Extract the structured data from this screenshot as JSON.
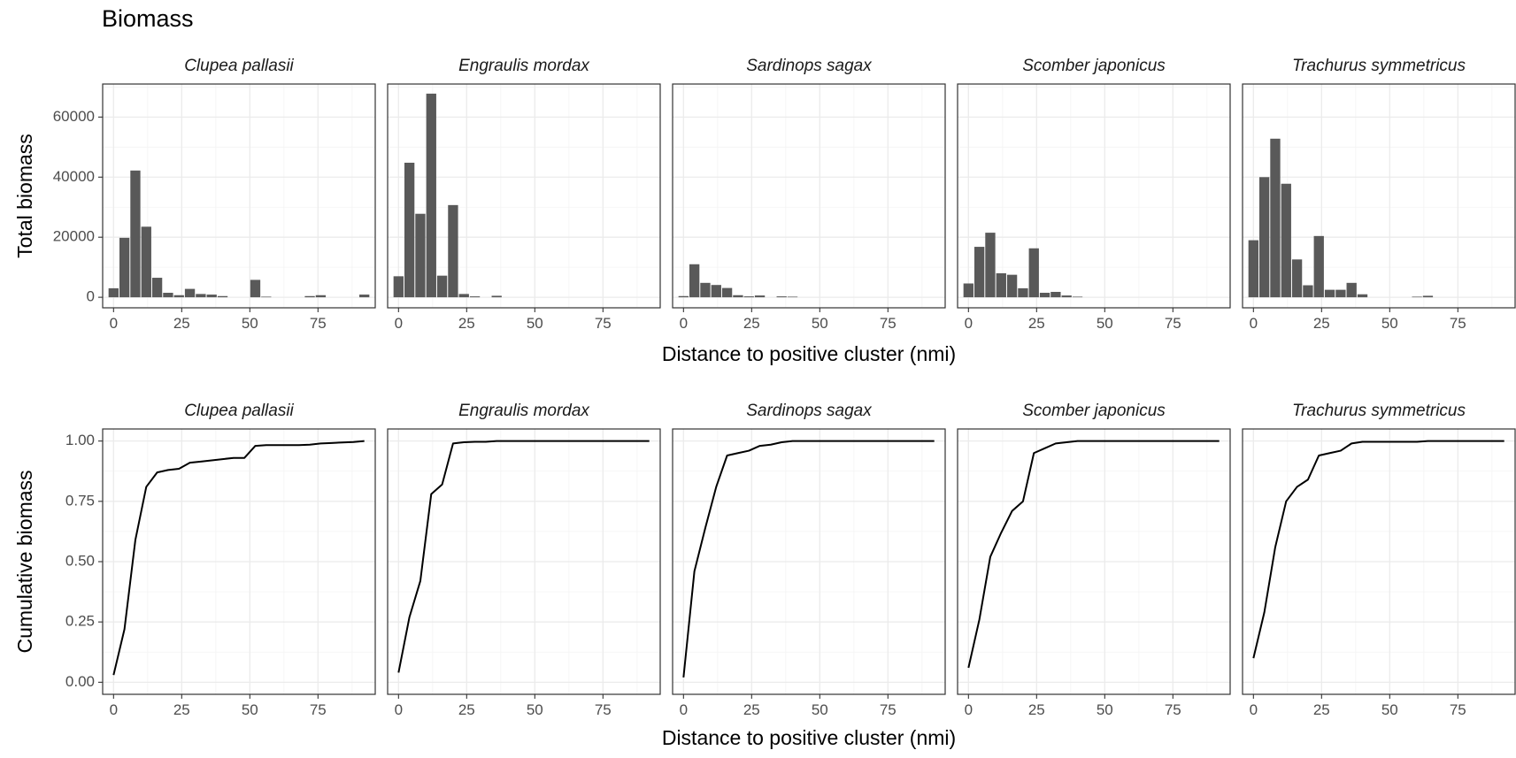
{
  "title": "Biomass",
  "chart_data": [
    {
      "type": "bar",
      "ylabel": "Total biomass",
      "xlabel": "Distance to positive cluster (nmi)",
      "xlim": [
        -4,
        96
      ],
      "ylim": [
        -3500,
        71000
      ],
      "x_ticks": [
        0,
        25,
        50,
        75
      ],
      "x_tick_labels": [
        "0",
        "25",
        "50",
        "75"
      ],
      "y_ticks": [
        0,
        20000,
        40000,
        60000
      ],
      "y_tick_labels": [
        "0",
        "20000",
        "40000",
        "60000"
      ],
      "bin_width": 4,
      "facets": [
        {
          "name": "Clupea pallasii",
          "x": [
            0,
            4,
            8,
            12,
            16,
            20,
            24,
            28,
            32,
            36,
            40,
            52,
            56,
            72,
            76,
            92
          ],
          "values": [
            3000,
            19800,
            42200,
            23500,
            6500,
            1500,
            700,
            2800,
            1100,
            900,
            400,
            5800,
            200,
            400,
            700,
            900
          ]
        },
        {
          "name": "Engraulis mordax",
          "x": [
            0,
            4,
            8,
            12,
            16,
            20,
            24,
            28,
            36
          ],
          "values": [
            7000,
            44800,
            27800,
            67800,
            7200,
            30700,
            1100,
            300,
            500
          ]
        },
        {
          "name": "Sardinops sagax",
          "x": [
            0,
            4,
            8,
            12,
            16,
            20,
            24,
            28,
            36,
            40
          ],
          "values": [
            400,
            11000,
            4800,
            4100,
            3100,
            700,
            300,
            600,
            300,
            200
          ]
        },
        {
          "name": "Scomber japonicus",
          "x": [
            0,
            4,
            8,
            12,
            16,
            20,
            24,
            28,
            32,
            36,
            40
          ],
          "values": [
            4600,
            16800,
            21500,
            8000,
            7500,
            3000,
            16300,
            1500,
            1800,
            600,
            200
          ]
        },
        {
          "name": "Trachurus symmetricus",
          "x": [
            0,
            4,
            8,
            12,
            16,
            20,
            24,
            28,
            32,
            36,
            40,
            60,
            64
          ],
          "values": [
            19000,
            40000,
            52800,
            37800,
            12600,
            4000,
            20400,
            2500,
            2500,
            4800,
            1000,
            200,
            500
          ]
        }
      ]
    },
    {
      "type": "line",
      "ylabel": "Cumulative biomass",
      "xlabel": "Distance to positive cluster (nmi)",
      "xlim": [
        -4,
        96
      ],
      "ylim": [
        -0.05,
        1.05
      ],
      "x_ticks": [
        0,
        25,
        50,
        75
      ],
      "x_tick_labels": [
        "0",
        "25",
        "50",
        "75"
      ],
      "y_ticks": [
        0,
        0.25,
        0.5,
        0.75,
        1.0
      ],
      "y_tick_labels": [
        "0.00",
        "0.25",
        "0.50",
        "0.75",
        "1.00"
      ],
      "facets": [
        {
          "name": "Clupea pallasii",
          "x": [
            0,
            4,
            8,
            12,
            16,
            20,
            24,
            28,
            32,
            36,
            40,
            44,
            48,
            52,
            56,
            60,
            64,
            68,
            72,
            76,
            80,
            84,
            88,
            92
          ],
          "y": [
            0.03,
            0.22,
            0.59,
            0.81,
            0.87,
            0.88,
            0.885,
            0.91,
            0.915,
            0.92,
            0.925,
            0.93,
            0.93,
            0.98,
            0.983,
            0.983,
            0.983,
            0.983,
            0.985,
            0.99,
            0.992,
            0.994,
            0.996,
            1.0
          ]
        },
        {
          "name": "Engraulis mordax",
          "x": [
            0,
            4,
            8,
            12,
            16,
            20,
            24,
            28,
            32,
            36,
            40,
            60,
            80,
            92
          ],
          "y": [
            0.04,
            0.27,
            0.42,
            0.78,
            0.82,
            0.99,
            0.995,
            0.997,
            0.997,
            1.0,
            1.0,
            1.0,
            1.0,
            1.0
          ]
        },
        {
          "name": "Sardinops sagax",
          "x": [
            0,
            4,
            8,
            12,
            16,
            20,
            24,
            28,
            32,
            36,
            40,
            60,
            80,
            92
          ],
          "y": [
            0.02,
            0.46,
            0.64,
            0.81,
            0.94,
            0.95,
            0.96,
            0.98,
            0.985,
            0.995,
            1.0,
            1.0,
            1.0,
            1.0
          ]
        },
        {
          "name": "Scomber japonicus",
          "x": [
            0,
            4,
            8,
            12,
            16,
            20,
            24,
            28,
            32,
            36,
            40,
            60,
            80,
            92
          ],
          "y": [
            0.06,
            0.26,
            0.52,
            0.62,
            0.71,
            0.75,
            0.95,
            0.97,
            0.99,
            0.995,
            1.0,
            1.0,
            1.0,
            1.0
          ]
        },
        {
          "name": "Trachurus symmetricus",
          "x": [
            0,
            4,
            8,
            12,
            16,
            20,
            24,
            28,
            32,
            36,
            40,
            60,
            64,
            80,
            92
          ],
          "y": [
            0.1,
            0.29,
            0.56,
            0.75,
            0.81,
            0.84,
            0.94,
            0.95,
            0.96,
            0.99,
            0.997,
            0.997,
            1.0,
            1.0,
            1.0
          ]
        }
      ]
    }
  ]
}
